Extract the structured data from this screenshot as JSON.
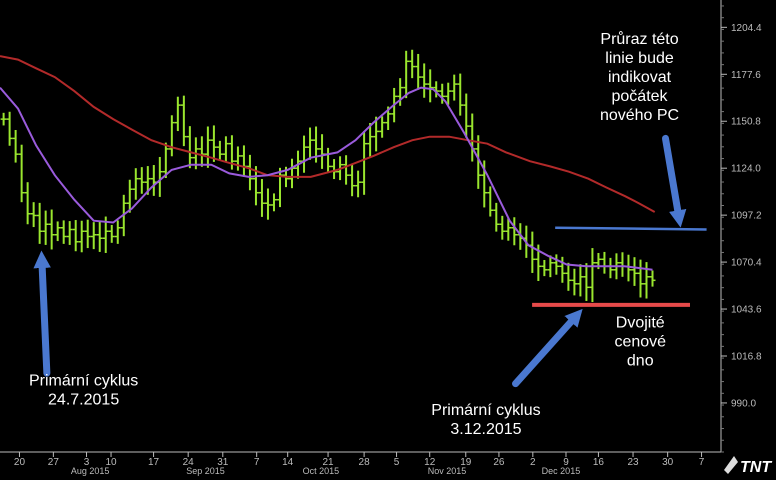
{
  "chart_data": {
    "type": "bar",
    "subtype": "ohlc-price-bars",
    "title": "",
    "xlabel": "",
    "ylabel": "",
    "ylim": [
      962,
      1220
    ],
    "xlim": [
      0,
      100
    ],
    "grid": false,
    "y_ticks": [
      1204.4,
      1177.6,
      1150.8,
      1124.0,
      1097.2,
      1070.4,
      1043.6,
      1016.8,
      990.0
    ],
    "x_ticks": [
      {
        "label": "20",
        "x": 2.7
      },
      {
        "label": "27",
        "x": 7.4
      },
      {
        "label": "3",
        "x": 12.0
      },
      {
        "label": "10",
        "x": 15.4
      },
      {
        "label": "17",
        "x": 21.3
      },
      {
        "label": "24",
        "x": 26.1
      },
      {
        "label": "31",
        "x": 30.9
      },
      {
        "label": "7",
        "x": 35.6
      },
      {
        "label": "14",
        "x": 39.9
      },
      {
        "label": "21",
        "x": 45.5
      },
      {
        "label": "28",
        "x": 50.5
      },
      {
        "label": "5",
        "x": 55.0
      },
      {
        "label": "12",
        "x": 59.6
      },
      {
        "label": "19",
        "x": 64.6
      },
      {
        "label": "26",
        "x": 69.2
      },
      {
        "label": "2",
        "x": 73.9
      },
      {
        "label": "9",
        "x": 78.5
      },
      {
        "label": "16",
        "x": 83.0
      },
      {
        "label": "23",
        "x": 87.8
      },
      {
        "label": "30",
        "x": 92.6
      },
      {
        "label": "7",
        "x": 97.3
      }
    ],
    "month_labels": [
      {
        "label": "Aug 2015",
        "x": 12.5
      },
      {
        "label": "Sep 2015",
        "x": 28.5
      },
      {
        "label": "Oct 2015",
        "x": 44.5
      },
      {
        "label": "Nov 2015",
        "x": 62.0
      },
      {
        "label": "Dec 2015",
        "x": 77.8
      }
    ],
    "ohlc_close": [
      1152,
      1141,
      1132,
      1110,
      1098,
      1097,
      1088,
      1092,
      1086,
      1090,
      1085,
      1089,
      1082,
      1088,
      1085,
      1086,
      1084,
      1088,
      1085,
      1090,
      1104,
      1112,
      1118,
      1116,
      1118,
      1116,
      1122,
      1135,
      1150,
      1160,
      1142,
      1130,
      1135,
      1132,
      1140,
      1136,
      1132,
      1138,
      1128,
      1131,
      1125,
      1118,
      1110,
      1104,
      1103,
      1106,
      1120,
      1118,
      1124,
      1128,
      1136,
      1140,
      1135,
      1132,
      1125,
      1122,
      1126,
      1120,
      1114,
      1116,
      1138,
      1142,
      1145,
      1150,
      1155,
      1165,
      1170,
      1185,
      1182,
      1176,
      1172,
      1170,
      1168,
      1165,
      1168,
      1172,
      1160,
      1148,
      1135,
      1120,
      1110,
      1100,
      1092,
      1088,
      1090,
      1086,
      1084,
      1080,
      1072,
      1068,
      1066,
      1070,
      1068,
      1064,
      1060,
      1058,
      1062,
      1056,
      1070,
      1072,
      1068,
      1066,
      1070,
      1068,
      1066,
      1064,
      1058,
      1062,
      1060
    ],
    "ma_purple": [
      {
        "x": 0.0,
        "y": 1170
      },
      {
        "x": 2.5,
        "y": 1158
      },
      {
        "x": 5.0,
        "y": 1137
      },
      {
        "x": 7.6,
        "y": 1120
      },
      {
        "x": 10.3,
        "y": 1106
      },
      {
        "x": 13.0,
        "y": 1094
      },
      {
        "x": 15.7,
        "y": 1093
      },
      {
        "x": 18.3,
        "y": 1101
      },
      {
        "x": 21.0,
        "y": 1113
      },
      {
        "x": 23.8,
        "y": 1123
      },
      {
        "x": 26.5,
        "y": 1126
      },
      {
        "x": 29.3,
        "y": 1126
      },
      {
        "x": 31.8,
        "y": 1121
      },
      {
        "x": 34.5,
        "y": 1119
      },
      {
        "x": 37.1,
        "y": 1120
      },
      {
        "x": 39.9,
        "y": 1123
      },
      {
        "x": 43.1,
        "y": 1130
      },
      {
        "x": 46.8,
        "y": 1133
      },
      {
        "x": 49.3,
        "y": 1140
      },
      {
        "x": 51.8,
        "y": 1150
      },
      {
        "x": 54.6,
        "y": 1160
      },
      {
        "x": 56.7,
        "y": 1167
      },
      {
        "x": 58.4,
        "y": 1170
      },
      {
        "x": 60.1,
        "y": 1169
      },
      {
        "x": 61.8,
        "y": 1162
      },
      {
        "x": 64.4,
        "y": 1144
      },
      {
        "x": 67.6,
        "y": 1120
      },
      {
        "x": 70.7,
        "y": 1094
      },
      {
        "x": 73.3,
        "y": 1080
      },
      {
        "x": 76.0,
        "y": 1074
      },
      {
        "x": 78.6,
        "y": 1069
      },
      {
        "x": 81.3,
        "y": 1068
      },
      {
        "x": 84.0,
        "y": 1068
      },
      {
        "x": 86.6,
        "y": 1068
      },
      {
        "x": 88.6,
        "y": 1067
      },
      {
        "x": 90.5,
        "y": 1066
      }
    ],
    "ma_red": [
      {
        "x": 0.0,
        "y": 1188
      },
      {
        "x": 2.5,
        "y": 1186
      },
      {
        "x": 5.0,
        "y": 1181
      },
      {
        "x": 7.6,
        "y": 1176
      },
      {
        "x": 10.3,
        "y": 1168
      },
      {
        "x": 13.0,
        "y": 1159
      },
      {
        "x": 15.7,
        "y": 1152
      },
      {
        "x": 18.3,
        "y": 1146
      },
      {
        "x": 21.0,
        "y": 1140
      },
      {
        "x": 23.8,
        "y": 1136
      },
      {
        "x": 26.5,
        "y": 1133
      },
      {
        "x": 29.3,
        "y": 1130
      },
      {
        "x": 31.8,
        "y": 1127
      },
      {
        "x": 34.5,
        "y": 1124
      },
      {
        "x": 37.1,
        "y": 1120
      },
      {
        "x": 39.9,
        "y": 1119
      },
      {
        "x": 43.1,
        "y": 1119
      },
      {
        "x": 46.8,
        "y": 1123
      },
      {
        "x": 49.3,
        "y": 1127
      },
      {
        "x": 51.8,
        "y": 1131
      },
      {
        "x": 54.6,
        "y": 1136
      },
      {
        "x": 57.2,
        "y": 1140
      },
      {
        "x": 59.6,
        "y": 1142
      },
      {
        "x": 62.3,
        "y": 1142
      },
      {
        "x": 64.9,
        "y": 1140
      },
      {
        "x": 67.6,
        "y": 1138
      },
      {
        "x": 70.2,
        "y": 1133
      },
      {
        "x": 73.5,
        "y": 1128
      },
      {
        "x": 76.3,
        "y": 1125
      },
      {
        "x": 78.9,
        "y": 1122
      },
      {
        "x": 81.6,
        "y": 1118
      },
      {
        "x": 84.1,
        "y": 1113
      },
      {
        "x": 86.7,
        "y": 1108
      },
      {
        "x": 88.6,
        "y": 1104
      },
      {
        "x": 90.8,
        "y": 1099
      }
    ],
    "lines": [
      {
        "name": "resistance",
        "color": "#4a78d0",
        "x1": 77.0,
        "y1": 1090,
        "x2": 98.0,
        "y2": 1089
      },
      {
        "name": "support",
        "color": "#e64a4a",
        "x1": 73.8,
        "y1": 1046,
        "x2": 95.7,
        "y2": 1046
      }
    ],
    "arrows": [
      {
        "name": "arrow-up-left",
        "from_x": 6.5,
        "from_y": 1007,
        "to_x": 5.8,
        "to_y": 1072
      },
      {
        "name": "arrow-down-right",
        "from_x": 92.3,
        "from_y": 1141,
        "to_x": 94.2,
        "to_y": 1095
      },
      {
        "name": "arrow-up-bottom",
        "from_x": 71.5,
        "from_y": 1001,
        "to_x": 80.0,
        "to_y": 1040
      }
    ],
    "annotations": [
      {
        "name": "breakout-note",
        "lines": [
          "Průraz této",
          "linie bude",
          "indikovat",
          "počátek",
          "nového PC"
        ],
        "x": 88.7,
        "y": 1195
      },
      {
        "name": "double-bottom-note",
        "lines": [
          "Dvojité",
          "cenové",
          "dno"
        ],
        "x": 88.8,
        "y": 1033
      },
      {
        "name": "primary-cycle-july",
        "lines": [
          "Primární cyklus",
          "24.7.2015"
        ],
        "x": 11.6,
        "y": 1000
      },
      {
        "name": "primary-cycle-dec",
        "lines": [
          "Primární cyklus",
          "3.12.2015"
        ],
        "x": 67.4,
        "y": 983
      }
    ]
  },
  "colors": {
    "background": "#000000",
    "price_bars": "#9ae62e",
    "ma_purple": "#9a5bdc",
    "ma_red": "#b22a2a",
    "annotation_text": "#ffffff",
    "arrow": "#4a78d0",
    "axis": "#bbbbbb"
  },
  "logo": {
    "text": "TNT"
  }
}
